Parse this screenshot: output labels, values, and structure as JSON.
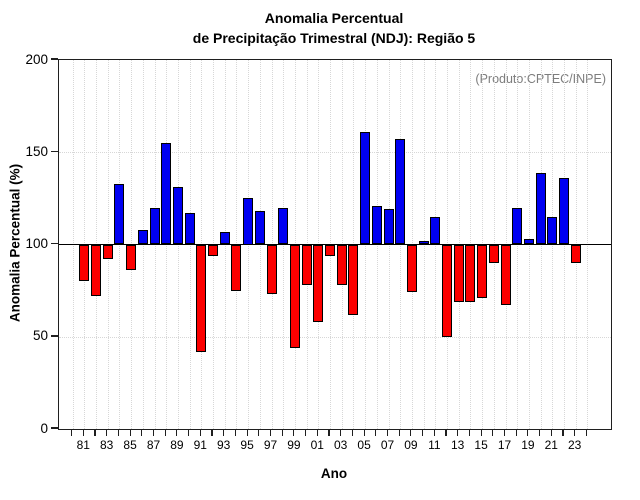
{
  "chart_data": {
    "type": "bar",
    "title_line1": "Anomalia Percentual",
    "title_line2": "de Precipitação Trimestral (NDJ): Região 5",
    "annotation": "(Produto:CPTEC/INPE)",
    "xlabel": "Ano",
    "ylabel": "Anomalia Percentual (%)",
    "ylim": [
      0,
      200
    ],
    "yticks": [
      0,
      50,
      100,
      150,
      200
    ],
    "grid_y": [
      50,
      150
    ],
    "baseline": 100,
    "x_start_year": 1980,
    "x_end_year": 2024,
    "grid_on": true,
    "legend_position": "none",
    "above_color": "#0000f2",
    "below_color": "#fb0000",
    "annotation_color": "#7d7d7d",
    "xtick_label_years": [
      1981,
      1983,
      1985,
      1987,
      1989,
      1991,
      1993,
      1995,
      1997,
      1999,
      2001,
      2003,
      2005,
      2007,
      2009,
      2011,
      2013,
      2015,
      2017,
      2019,
      2021,
      2023
    ],
    "xtick_labels": [
      "81",
      "83",
      "85",
      "87",
      "89",
      "91",
      "93",
      "95",
      "97",
      "99",
      "01",
      "03",
      "05",
      "07",
      "09",
      "11",
      "13",
      "15",
      "17",
      "19",
      "21",
      "23"
    ],
    "years": [
      1981,
      1982,
      1983,
      1984,
      1985,
      1986,
      1987,
      1988,
      1989,
      1990,
      1991,
      1992,
      1993,
      1994,
      1995,
      1996,
      1997,
      1998,
      1999,
      2000,
      2001,
      2002,
      2003,
      2004,
      2005,
      2006,
      2007,
      2008,
      2009,
      2010,
      2011,
      2012,
      2013,
      2014,
      2015,
      2016,
      2017,
      2018,
      2019,
      2020,
      2021,
      2022,
      2023
    ],
    "values": [
      80,
      72,
      92,
      133,
      86,
      108,
      120,
      155,
      131,
      117,
      42,
      94,
      107,
      75,
      125,
      118,
      73,
      120,
      44,
      78,
      58,
      94,
      78,
      62,
      161,
      121,
      119,
      157,
      74,
      102,
      115,
      50,
      69,
      69,
      71,
      90,
      67,
      120,
      103,
      139,
      115,
      136,
      90
    ]
  }
}
